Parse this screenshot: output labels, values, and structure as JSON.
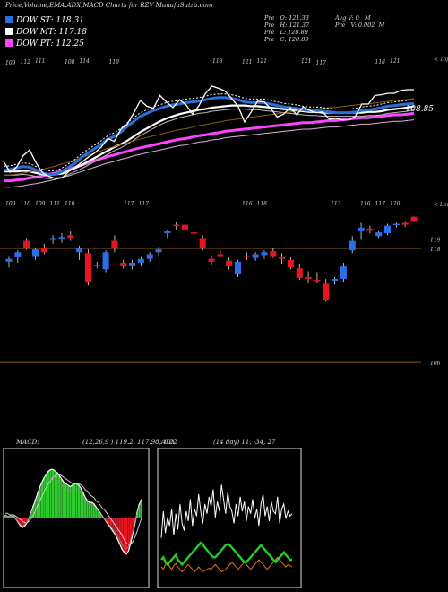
{
  "header": {
    "title": "Price,Volume,EMA,ADX,MACD Charts for RZV MunafaSutra.com"
  },
  "legend": [
    {
      "label": "DOW ST: 118.31",
      "color": "#2a6fd8"
    },
    {
      "label": "DOW MT: 117.18",
      "color": "#ffffff"
    },
    {
      "label": "DOW PT: 112.25",
      "color": "#ff44ff"
    }
  ],
  "ohlc": {
    "c1": [
      "Pre   O: 121.33",
      "Pre   H: 121.37",
      "Pre   L: 120.89",
      "Pre   C: 120.89"
    ],
    "c2": [
      "Avg V: 0   M",
      "Pre   V: 0.002  M"
    ]
  },
  "colors": {
    "up": "#2b6fe8",
    "down": "#e8141e",
    "level": "#8b5a16",
    "ema_slow": "#ff44ff",
    "ema_mid": "#ffffff",
    "ema_fast": "#2a6fd8",
    "adx": "#22d022",
    "neg_di": "#e07a10"
  },
  "chart_data": [
    {
      "type": "line",
      "name": "price_ema",
      "corner_labels": {
        "top": "< Tops",
        "bottom": "< Lows"
      },
      "price_label": "108.85",
      "top_labels": [
        "109",
        "112",
        "111",
        "",
        "108",
        "114",
        "",
        "119",
        "",
        "",
        "",
        "",
        "",
        "",
        "118",
        "",
        "121",
        "121",
        "",
        "",
        "121",
        "117",
        "",
        "",
        "",
        "118",
        "121",
        ""
      ],
      "bottom_labels": [
        "109",
        "110",
        "109",
        "111",
        "110",
        "",
        "",
        "",
        "117",
        "117",
        "",
        "",
        "",
        "",
        "",
        "",
        "116",
        "118",
        "",
        "",
        "",
        "",
        "113",
        "",
        "116",
        "117",
        "120",
        ""
      ],
      "price": [
        111,
        109.5,
        110.2,
        111.8,
        112.6,
        110.8,
        109.4,
        108.9,
        108.6,
        108.7,
        109.6,
        110.2,
        110.9,
        111.6,
        112.2,
        113,
        114.2,
        113.8,
        115.5,
        116.2,
        117.8,
        119.5,
        118.7,
        118.4,
        120.2,
        119.3,
        118.5,
        119.6,
        118.9,
        117.6,
        118.8,
        120.5,
        121.5,
        121.2,
        120.8,
        119.8,
        118.7,
        116.5,
        117.9,
        119.4,
        119.3,
        118.4,
        117.2,
        117.6,
        118.5,
        117.5,
        118.6,
        118.1,
        117.8,
        117.9,
        116.9,
        117,
        116.8,
        116.8,
        117.3,
        119,
        119,
        120.2,
        120.3,
        120.5,
        120.5,
        120.9,
        121,
        121
      ],
      "ema_fast": [
        109.8,
        109.9,
        110.1,
        110.3,
        110.2,
        109.8,
        109.4,
        109.2,
        109.2,
        109.6,
        110.2,
        110.8,
        111.6,
        112.2,
        112.8,
        113.4,
        114.1,
        114.5,
        115.1,
        115.9,
        116.6,
        117.3,
        117.7,
        118.1,
        118.4,
        118.7,
        118.9,
        119,
        119.2,
        119.3,
        119.4,
        119.6,
        119.8,
        119.9,
        119.9,
        119.8,
        119.6,
        119.3,
        119.2,
        119.2,
        119.2,
        119,
        118.8,
        118.6,
        118.5,
        118.4,
        118.2,
        118.1,
        118.1,
        118,
        117.9,
        117.8,
        117.8,
        117.8,
        117.9,
        118.1,
        118.2,
        118.3,
        118.5,
        118.7,
        118.8,
        118.9,
        119,
        119.1
      ],
      "ema_mid": [
        109.6,
        109.6,
        109.6,
        109.7,
        109.6,
        109.4,
        109.2,
        109.1,
        109.2,
        109.3,
        109.7,
        110.1,
        110.5,
        111,
        111.5,
        112,
        112.5,
        113,
        113.4,
        113.9,
        114.5,
        115.1,
        115.6,
        116.1,
        116.6,
        117,
        117.3,
        117.6,
        117.8,
        118,
        118.2,
        118.3,
        118.5,
        118.6,
        118.7,
        118.8,
        118.8,
        118.8,
        118.7,
        118.7,
        118.6,
        118.5,
        118.4,
        118.3,
        118.2,
        118.1,
        118,
        117.9,
        117.9,
        117.8,
        117.8,
        117.8,
        117.8,
        117.8,
        117.8,
        117.8,
        117.9,
        117.9,
        118,
        118.2,
        118.3,
        118.4,
        118.5,
        118.7
      ],
      "ema_slow": [
        108.3,
        108.3,
        108.4,
        108.5,
        108.7,
        108.8,
        109,
        109.2,
        109.4,
        109.7,
        109.9,
        110.2,
        110.5,
        110.8,
        111.1,
        111.4,
        111.7,
        111.9,
        112.2,
        112.4,
        112.7,
        112.9,
        113.1,
        113.3,
        113.5,
        113.7,
        113.9,
        114.1,
        114.2,
        114.4,
        114.6,
        114.7,
        114.9,
        115,
        115.2,
        115.3,
        115.4,
        115.5,
        115.6,
        115.7,
        115.8,
        115.9,
        116,
        116.1,
        116.2,
        116.3,
        116.4,
        116.4,
        116.5,
        116.6,
        116.7,
        116.7,
        116.8,
        116.9,
        117,
        117.1,
        117.1,
        117.2,
        117.3,
        117.4,
        117.5,
        117.5,
        117.6,
        117.7
      ],
      "ylim": [
        105,
        125
      ]
    },
    {
      "type": "candlestick",
      "name": "daily_candles",
      "ylim": [
        104.5,
        121.5
      ],
      "levels": [
        119,
        118,
        106
      ],
      "level_labels": [
        "119",
        "118",
        "106"
      ],
      "candles": [
        {
          "o": 116.6,
          "h": 117.2,
          "l": 116.0,
          "c": 116.9
        },
        {
          "o": 117.1,
          "h": 117.8,
          "l": 116.5,
          "c": 117.6
        },
        {
          "o": 118.8,
          "h": 119.1,
          "l": 117.9,
          "c": 118.0
        },
        {
          "o": 117.2,
          "h": 118.1,
          "l": 116.8,
          "c": 117.9
        },
        {
          "o": 118.0,
          "h": 118.5,
          "l": 117.4,
          "c": 117.6
        },
        {
          "o": 118.9,
          "h": 119.4,
          "l": 118.5,
          "c": 119.1
        },
        {
          "o": 119.0,
          "h": 119.6,
          "l": 118.6,
          "c": 119.2
        },
        {
          "o": 119.4,
          "h": 119.8,
          "l": 118.8,
          "c": 119.1
        },
        {
          "o": 117.6,
          "h": 118.3,
          "l": 116.8,
          "c": 118.0
        },
        {
          "o": 117.5,
          "h": 117.9,
          "l": 114.1,
          "c": 114.5
        },
        {
          "o": 116.3,
          "h": 116.6,
          "l": 115.9,
          "c": 116.2
        },
        {
          "o": 115.8,
          "h": 117.8,
          "l": 115.5,
          "c": 117.6
        },
        {
          "o": 118.8,
          "h": 119.4,
          "l": 117.6,
          "c": 118.0
        },
        {
          "o": 116.5,
          "h": 116.8,
          "l": 115.9,
          "c": 116.2
        },
        {
          "o": 116.2,
          "h": 116.8,
          "l": 115.8,
          "c": 116.5
        },
        {
          "o": 116.5,
          "h": 117.2,
          "l": 116.1,
          "c": 116.9
        },
        {
          "o": 116.9,
          "h": 117.6,
          "l": 116.6,
          "c": 117.4
        },
        {
          "o": 117.6,
          "h": 118.2,
          "l": 117.2,
          "c": 117.9
        },
        {
          "o": 119.6,
          "h": 120.0,
          "l": 119.1,
          "c": 119.8
        },
        {
          "o": 120.5,
          "h": 120.8,
          "l": 120.0,
          "c": 120.4
        },
        {
          "o": 120.5,
          "h": 120.8,
          "l": 120.0,
          "c": 120.0
        },
        {
          "o": 119.7,
          "h": 119.9,
          "l": 119.0,
          "c": 119.6
        },
        {
          "o": 119.1,
          "h": 119.4,
          "l": 117.8,
          "c": 118.1
        },
        {
          "o": 116.9,
          "h": 117.3,
          "l": 116.3,
          "c": 116.6
        },
        {
          "o": 117.4,
          "h": 117.8,
          "l": 117.0,
          "c": 117.2
        },
        {
          "o": 116.7,
          "h": 117.1,
          "l": 115.8,
          "c": 116.1
        },
        {
          "o": 115.3,
          "h": 116.8,
          "l": 115.0,
          "c": 116.6
        },
        {
          "o": 117.2,
          "h": 117.6,
          "l": 116.8,
          "c": 117.1
        },
        {
          "o": 117.0,
          "h": 117.6,
          "l": 116.7,
          "c": 117.4
        },
        {
          "o": 117.3,
          "h": 117.8,
          "l": 116.9,
          "c": 117.6
        },
        {
          "o": 117.7,
          "h": 118.1,
          "l": 117.0,
          "c": 117.2
        },
        {
          "o": 117.1,
          "h": 117.5,
          "l": 116.4,
          "c": 116.9
        },
        {
          "o": 116.8,
          "h": 117.1,
          "l": 115.8,
          "c": 116.0
        },
        {
          "o": 115.9,
          "h": 116.4,
          "l": 114.7,
          "c": 114.9
        },
        {
          "o": 115.0,
          "h": 115.6,
          "l": 114.4,
          "c": 114.8
        },
        {
          "o": 114.7,
          "h": 115.5,
          "l": 114.3,
          "c": 114.6
        },
        {
          "o": 114.3,
          "h": 114.8,
          "l": 112.4,
          "c": 112.6
        },
        {
          "o": 114.6,
          "h": 115.0,
          "l": 114.2,
          "c": 114.8
        },
        {
          "o": 114.8,
          "h": 116.5,
          "l": 114.5,
          "c": 116.1
        },
        {
          "o": 117.8,
          "h": 119.3,
          "l": 117.5,
          "c": 118.8
        },
        {
          "o": 119.8,
          "h": 120.7,
          "l": 118.9,
          "c": 120.2
        },
        {
          "o": 120.1,
          "h": 120.4,
          "l": 119.6,
          "c": 120.0
        },
        {
          "o": 119.3,
          "h": 119.9,
          "l": 119.1,
          "c": 119.7
        },
        {
          "o": 119.6,
          "h": 120.6,
          "l": 119.4,
          "c": 120.4
        },
        {
          "o": 120.5,
          "h": 120.8,
          "l": 120.2,
          "c": 120.6
        },
        {
          "o": 120.7,
          "h": 120.9,
          "l": 120.3,
          "c": 120.5
        },
        {
          "o": 121.33,
          "h": 121.37,
          "l": 120.89,
          "c": 120.89
        }
      ]
    },
    {
      "type": "line",
      "name": "macd",
      "title": "MACD:",
      "value_text": "(12,26,9 ) 119.2,  117.98,  1.22",
      "ylim": [
        -4,
        4
      ],
      "macd": [
        0.2,
        0.1,
        0.1,
        0.2,
        0.1,
        -0.1,
        -0.3,
        -0.5,
        -0.6,
        -0.5,
        -0.3,
        0,
        0.4,
        0.8,
        1.2,
        1.6,
        2,
        2.3,
        2.6,
        2.8,
        3,
        3.1,
        3.1,
        3,
        2.9,
        2.7,
        2.5,
        2.3,
        2.2,
        2.1,
        2,
        2.1,
        2.2,
        2.2,
        2.1,
        1.9,
        1.6,
        1.3,
        1.1,
        1,
        1,
        0.9,
        0.7,
        0.5,
        0.3,
        0.1,
        -0.1,
        -0.3,
        -0.5,
        -0.7,
        -0.9,
        -1.1,
        -1.4,
        -1.7,
        -2,
        -2.2,
        -2.3,
        -2.1,
        -1.6,
        -1,
        -0.3,
        0.4,
        0.9,
        1.2
      ],
      "signal": [
        0.3,
        0.3,
        0.2,
        0.2,
        0.2,
        0.1,
        0,
        -0.1,
        -0.2,
        -0.3,
        -0.3,
        -0.2,
        0,
        0.2,
        0.5,
        0.8,
        1.1,
        1.4,
        1.7,
        2,
        2.2,
        2.4,
        2.6,
        2.7,
        2.8,
        2.8,
        2.7,
        2.6,
        2.5,
        2.4,
        2.3,
        2.2,
        2.2,
        2.2,
        2.2,
        2.1,
        2,
        1.8,
        1.7,
        1.5,
        1.4,
        1.3,
        1.1,
        1,
        0.8,
        0.6,
        0.5,
        0.3,
        0.1,
        -0.1,
        -0.3,
        -0.5,
        -0.7,
        -0.9,
        -1.1,
        -1.4,
        -1.6,
        -1.7,
        -1.7,
        -1.5,
        -1.2,
        -0.8,
        -0.4,
        0
      ]
    },
    {
      "type": "line",
      "name": "adx",
      "title": "ADX",
      "value_text": "(14 day) 11,  -34,  27",
      "ylim": [
        0,
        100
      ],
      "plus_di": [
        38,
        60,
        42,
        55,
        48,
        62,
        40,
        58,
        45,
        66,
        50,
        44,
        60,
        52,
        70,
        48,
        62,
        56,
        74,
        60,
        50,
        66,
        58,
        72,
        64,
        78,
        55,
        68,
        60,
        82,
        70,
        58,
        76,
        64,
        60,
        50,
        66,
        56,
        72,
        60,
        68,
        52,
        64,
        58,
        70,
        54,
        62,
        48,
        66,
        74,
        56,
        64,
        52,
        68,
        60,
        58,
        72,
        50,
        62,
        66,
        54,
        60,
        56,
        58
      ],
      "adx_line": [
        20,
        22,
        18,
        16,
        18,
        20,
        22,
        24,
        20,
        18,
        16,
        18,
        20,
        22,
        24,
        26,
        28,
        30,
        32,
        34,
        33,
        30,
        28,
        26,
        24,
        22,
        22,
        24,
        26,
        28,
        30,
        32,
        33,
        32,
        30,
        28,
        26,
        24,
        22,
        20,
        18,
        18,
        20,
        22,
        24,
        26,
        28,
        30,
        32,
        30,
        28,
        26,
        24,
        22,
        20,
        18,
        20,
        22,
        24,
        26,
        24,
        22,
        20,
        20
      ],
      "minus_di": [
        14,
        12,
        16,
        18,
        14,
        12,
        15,
        17,
        14,
        12,
        10,
        12,
        14,
        16,
        14,
        12,
        10,
        12,
        14,
        12,
        10,
        11,
        12,
        13,
        12,
        14,
        16,
        14,
        12,
        10,
        11,
        12,
        14,
        16,
        18,
        16,
        14,
        12,
        14,
        16,
        18,
        16,
        14,
        12,
        14,
        16,
        18,
        20,
        18,
        16,
        14,
        12,
        14,
        16,
        18,
        20,
        22,
        20,
        18,
        16,
        14,
        16,
        15,
        14
      ]
    }
  ]
}
